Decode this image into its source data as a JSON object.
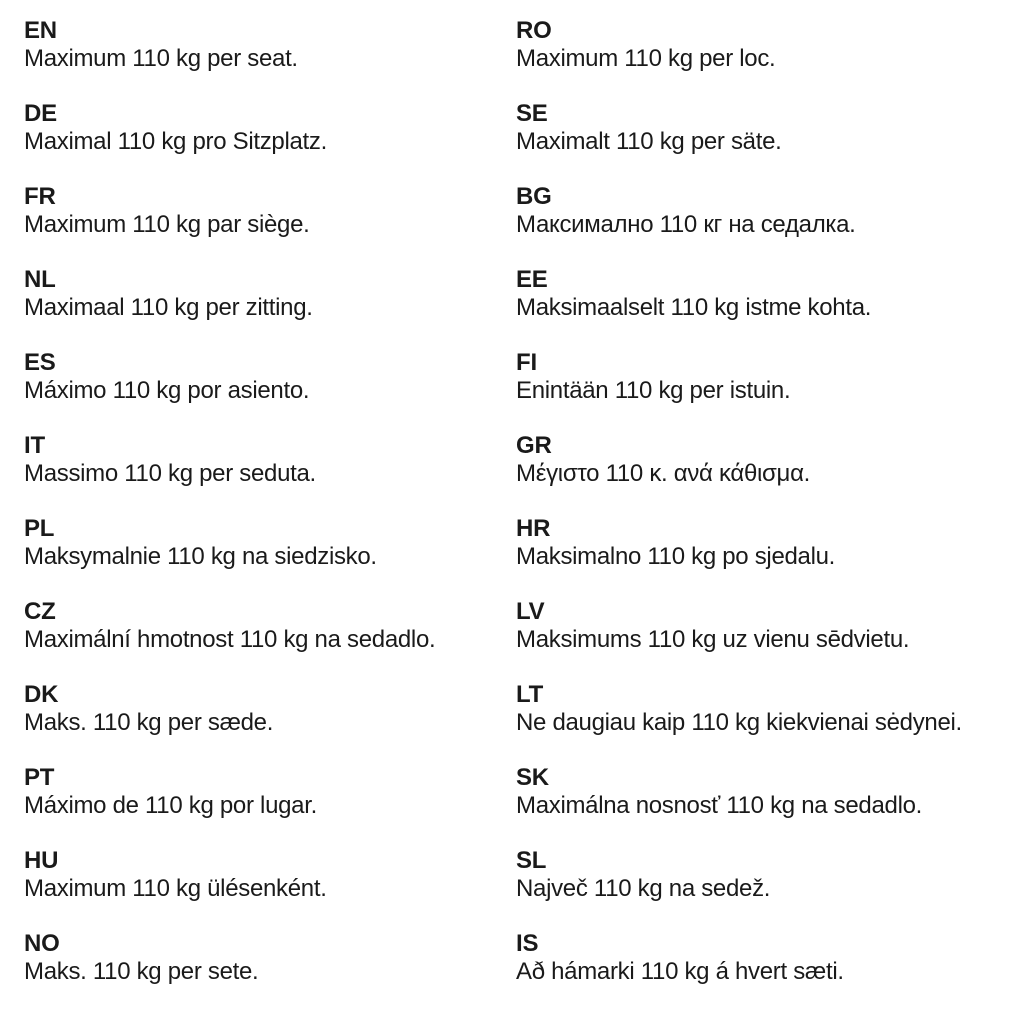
{
  "page": {
    "background_color": "#ffffff",
    "text_color": "#1a1a1a",
    "description": "Multilingual seat weight limit notice"
  },
  "columns": [
    {
      "items": [
        {
          "code": "EN",
          "text": "Maximum 110 kg per seat."
        },
        {
          "code": "DE",
          "text": "Maximal 110 kg pro Sitzplatz."
        },
        {
          "code": "FR",
          "text": "Maximum 110 kg par siège."
        },
        {
          "code": "NL",
          "text": "Maximaal 110 kg per zitting."
        },
        {
          "code": "ES",
          "text": "Máximo 110 kg por asiento."
        },
        {
          "code": "IT",
          "text": "Massimo 110 kg per seduta."
        },
        {
          "code": "PL",
          "text": "Maksymalnie 110 kg na siedzisko."
        },
        {
          "code": "CZ",
          "text": "Maximální hmotnost 110 kg na sedadlo."
        },
        {
          "code": "DK",
          "text": "Maks. 110 kg per sæde."
        },
        {
          "code": "PT",
          "text": "Máximo de 110 kg por lugar."
        },
        {
          "code": "HU",
          "text": "Maximum 110 kg ülésenként."
        },
        {
          "code": "NO",
          "text": "Maks. 110 kg per sete."
        }
      ]
    },
    {
      "items": [
        {
          "code": "RO",
          "text": "Maximum 110 kg per loc."
        },
        {
          "code": "SE",
          "text": "Maximalt 110 kg per säte."
        },
        {
          "code": "BG",
          "text": "Максимално 110 кг на седалка."
        },
        {
          "code": "EE",
          "text": "Maksimaalselt 110 kg istme kohta."
        },
        {
          "code": "FI",
          "text": "Enintään 110 kg per istuin."
        },
        {
          "code": "GR",
          "text": "Μέγιστο 110 κ. ανά κάθισμα."
        },
        {
          "code": "HR",
          "text": "Maksimalno 110 kg po sjedalu."
        },
        {
          "code": "LV",
          "text": "Maksimums 110 kg uz vienu sēdvietu."
        },
        {
          "code": "LT",
          "text": "Ne daugiau kaip 110 kg kiekvienai sėdynei."
        },
        {
          "code": "SK",
          "text": "Maximálna nosnosť 110 kg na sedadlo."
        },
        {
          "code": "SL",
          "text": "Največ 110 kg na sedež."
        },
        {
          "code": "IS",
          "text": "Að hámarki 110 kg á hvert sæti."
        }
      ]
    }
  ]
}
